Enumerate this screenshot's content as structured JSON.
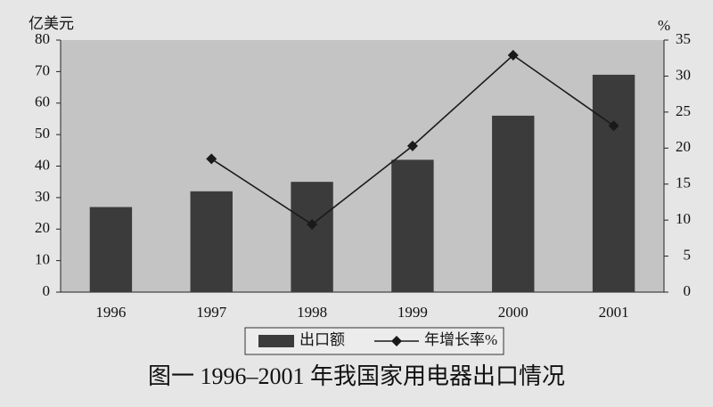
{
  "chart_data": {
    "type": "bar_line",
    "title": "图一 1996–2001 年我国家用电器出口情况",
    "y_label": "亿美元",
    "y2_label": "%",
    "categories": [
      "1996",
      "1997",
      "1998",
      "1999",
      "2000",
      "2001"
    ],
    "series": [
      {
        "name": "出口额",
        "type": "bar",
        "color": "#3b3b3b",
        "values": [
          27,
          32,
          35,
          42,
          56,
          69
        ]
      },
      {
        "name": "年增长率%",
        "type": "line",
        "axis": "y2",
        "color": "#1a1a1a",
        "values": [
          null,
          18.5,
          9.4,
          20.3,
          32.9,
          23.1
        ]
      }
    ],
    "ylim": [
      0,
      80
    ],
    "yticks": [
      0,
      10,
      20,
      30,
      40,
      50,
      60,
      70,
      80
    ],
    "y2lim": [
      0,
      35
    ],
    "y2ticks": [
      0,
      5,
      10,
      15,
      20,
      25,
      30,
      35
    ],
    "grid": false,
    "legend": "bottom"
  }
}
